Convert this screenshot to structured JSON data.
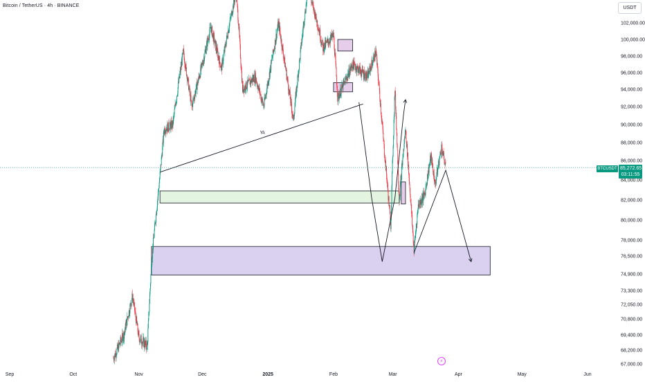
{
  "header": {
    "title": "Bitcoin / TetherUS · 4h · BINANCE",
    "currency": "USDT"
  },
  "price_marker": {
    "symbol": "BTCUSDT",
    "price": "85,272.65",
    "countdown": "03:11:55",
    "value": 85272.65,
    "color": "#089981"
  },
  "colors": {
    "up": "#089981",
    "down": "#f23645",
    "demand_zone": "#d9d1ef",
    "support_zone": "#e3f4e1",
    "supply_zone": "#e6cdea",
    "line": "#131722"
  },
  "icons": {
    "alert": "lightning-icon"
  },
  "chart_data": {
    "type": "candlestick",
    "title": "Bitcoin / TetherUS · 4h · BINANCE",
    "y_tick_labels": [
      "102,000.00",
      "100,000.00",
      "98,000.00",
      "96,000.00",
      "94,000.00",
      "92,000.00",
      "90,000.00",
      "88,000.00",
      "86,000.00",
      "84,000.00",
      "82,000.00",
      "80,000.00",
      "78,000.00",
      "76,500.00",
      "74,900.00",
      "73,300.00",
      "72,050.00",
      "70,800.00",
      "69,400.00",
      "68,200.00",
      "67,000.00"
    ],
    "y_tick_values": [
      102000,
      100000,
      98000,
      96000,
      94000,
      92000,
      90000,
      88000,
      86000,
      84000,
      82000,
      80000,
      78000,
      76500,
      74900,
      73300,
      72050,
      70800,
      69400,
      68200,
      67000
    ],
    "x_tick_labels": [
      "Sep",
      "Oct",
      "Nov",
      "Dec",
      "2025",
      "Feb",
      "Mar",
      "Apr",
      "May",
      "Jun"
    ],
    "ylim": [
      66500,
      104500
    ],
    "y_scale": "log",
    "grid": false,
    "price_path": [
      [
        "2024-10-20",
        67500
      ],
      [
        "2024-10-25",
        69500
      ],
      [
        "2024-10-29",
        72800
      ],
      [
        "2024-11-01",
        69200
      ],
      [
        "2024-11-05",
        68500
      ],
      [
        "2024-11-07",
        76000
      ],
      [
        "2024-11-11",
        84500
      ],
      [
        "2024-11-13",
        89500
      ],
      [
        "2024-11-17",
        90000
      ],
      [
        "2024-11-22",
        98500
      ],
      [
        "2024-11-26",
        92000
      ],
      [
        "2024-12-01",
        97000
      ],
      [
        "2024-12-05",
        101500
      ],
      [
        "2024-12-10",
        96500
      ],
      [
        "2024-12-17",
        106500
      ],
      [
        "2024-12-20",
        94000
      ],
      [
        "2024-12-26",
        95500
      ],
      [
        "2024-12-30",
        92000
      ],
      [
        "2025-01-06",
        102000
      ],
      [
        "2025-01-13",
        90500
      ],
      [
        "2025-01-20",
        107000
      ],
      [
        "2025-01-27",
        99000
      ],
      [
        "2025-02-01",
        100500
      ],
      [
        "2025-02-03",
        93000
      ],
      [
        "2025-02-10",
        97000
      ],
      [
        "2025-02-17",
        95500
      ],
      [
        "2025-02-21",
        98500
      ],
      [
        "2025-02-25",
        87000
      ],
      [
        "2025-02-28",
        79500
      ],
      [
        "2025-03-02",
        94000
      ],
      [
        "2025-03-04",
        82000
      ],
      [
        "2025-03-07",
        89500
      ],
      [
        "2025-03-11",
        77000
      ],
      [
        "2025-03-13",
        81500
      ],
      [
        "2025-03-16",
        82500
      ],
      [
        "2025-03-19",
        86500
      ],
      [
        "2025-03-21",
        83500
      ],
      [
        "2025-03-24",
        87500
      ],
      [
        "2025-03-26",
        85272
      ]
    ],
    "zones": [
      {
        "name": "demand-zone",
        "from": "2024-11-07",
        "to": "2025-04-16",
        "low": 74800,
        "high": 77400,
        "color": "#d9d1ef"
      },
      {
        "name": "support-zone",
        "from": "2024-11-11",
        "to": "2025-03-04",
        "low": 81700,
        "high": 82900,
        "color": "#e3f4e1"
      },
      {
        "name": "supply-zone-upper",
        "from": "2025-02-03",
        "to": "2025-02-10",
        "low": 98600,
        "high": 100000,
        "color": "#e6cdea"
      },
      {
        "name": "supply-zone-lower",
        "from": "2025-02-01",
        "to": "2025-02-10",
        "low": 93700,
        "high": 94800,
        "color": "#e6cdea"
      },
      {
        "name": "small-zone",
        "from": "2025-03-05",
        "to": "2025-03-07",
        "low": 81600,
        "high": 83800,
        "color": "#e6cdea"
      }
    ],
    "trendline": {
      "label": "lq",
      "from": [
        "2024-11-11",
        84800
      ],
      "to": [
        "2025-02-15",
        92300
      ]
    },
    "projection": [
      [
        "2025-02-13",
        92500
      ],
      [
        "2025-02-19",
        82200
      ],
      [
        "2025-02-24",
        76000
      ],
      [
        "2025-03-02",
        82200
      ],
      [
        "2025-03-06",
        91000
      ],
      [
        "2025-03-07",
        92800
      ],
      [
        "2025-03-11",
        76800
      ],
      [
        "2025-03-26",
        85000
      ],
      [
        "2025-04-07",
        76000
      ]
    ]
  }
}
